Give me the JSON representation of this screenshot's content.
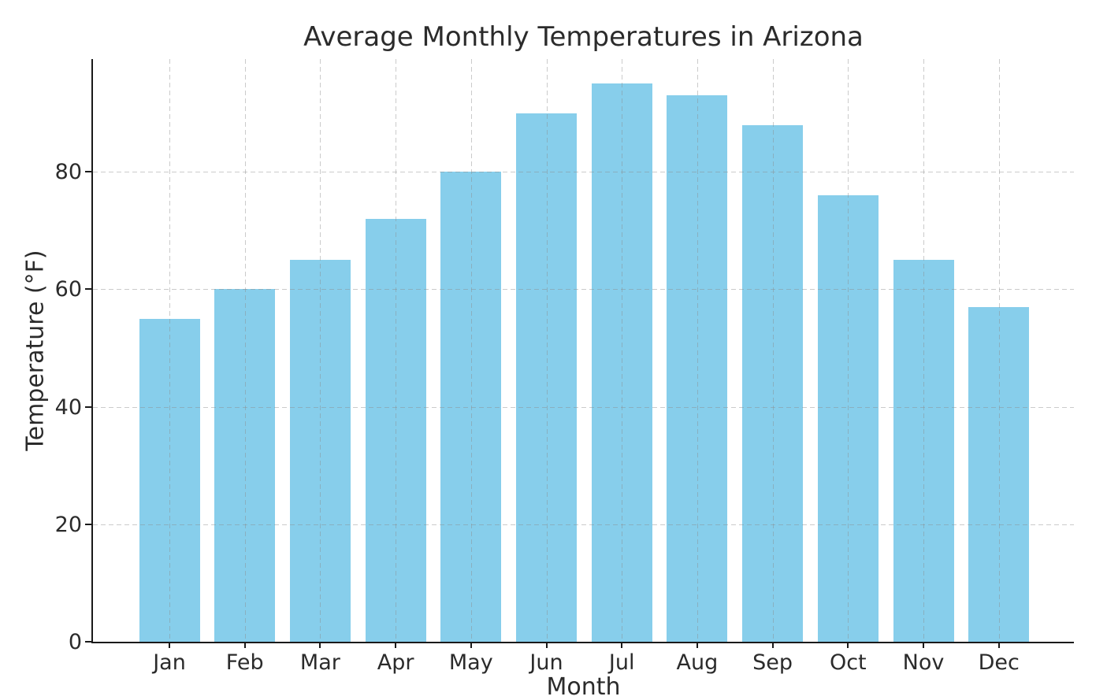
{
  "chart_data": {
    "type": "bar",
    "title": "Average Monthly Temperatures in Arizona",
    "xlabel": "Month",
    "ylabel": "Temperature (°F)",
    "categories": [
      "Jan",
      "Feb",
      "Mar",
      "Apr",
      "May",
      "Jun",
      "Jul",
      "Aug",
      "Sep",
      "Oct",
      "Nov",
      "Dec"
    ],
    "values": [
      55,
      60,
      65,
      72,
      80,
      90,
      95,
      93,
      88,
      76,
      65,
      57
    ],
    "yticks": [
      0,
      20,
      40,
      60,
      80
    ],
    "ylim": [
      0,
      99.2
    ],
    "bar_color": "#87CEEB",
    "grid": true,
    "grid_linestyle": "dashed",
    "legend_position": "none"
  }
}
